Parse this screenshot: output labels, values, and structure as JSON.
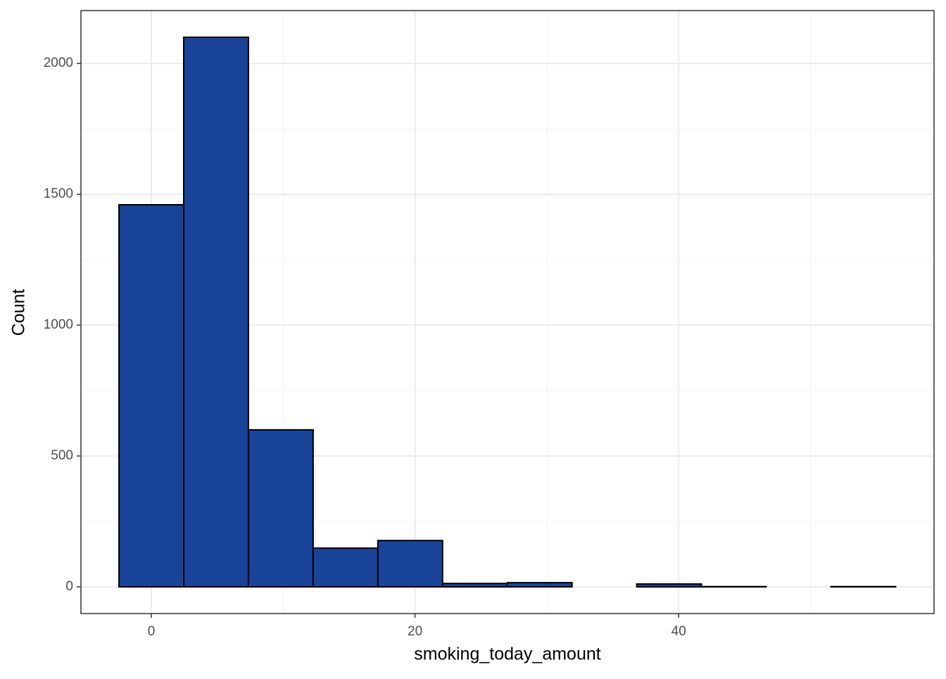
{
  "chart_data": {
    "type": "histogram",
    "x_label": "smoking_today_amount",
    "y_label": "Count",
    "bins": [
      -2.4545,
      2.4545,
      7.3636,
      12.2727,
      17.1818,
      22.0909,
      27,
      31.9091,
      36.8182,
      41.7273,
      46.6364,
      51.5455,
      56.4545
    ],
    "values": [
      1460,
      2100,
      600,
      148,
      177,
      13,
      16,
      0,
      11,
      1,
      0,
      1
    ],
    "color": "#1a4499",
    "edge_color": "#000000",
    "xlim": [
      -5.34,
      59.37
    ],
    "ylim": [
      -102,
      2202
    ],
    "xticks": [
      0,
      20,
      40
    ],
    "yticks": [
      0,
      500,
      1000,
      1500,
      2000
    ],
    "xminor": [
      10,
      30,
      50
    ],
    "yminor": [
      250,
      750,
      1250,
      1750
    ],
    "grid": true
  }
}
